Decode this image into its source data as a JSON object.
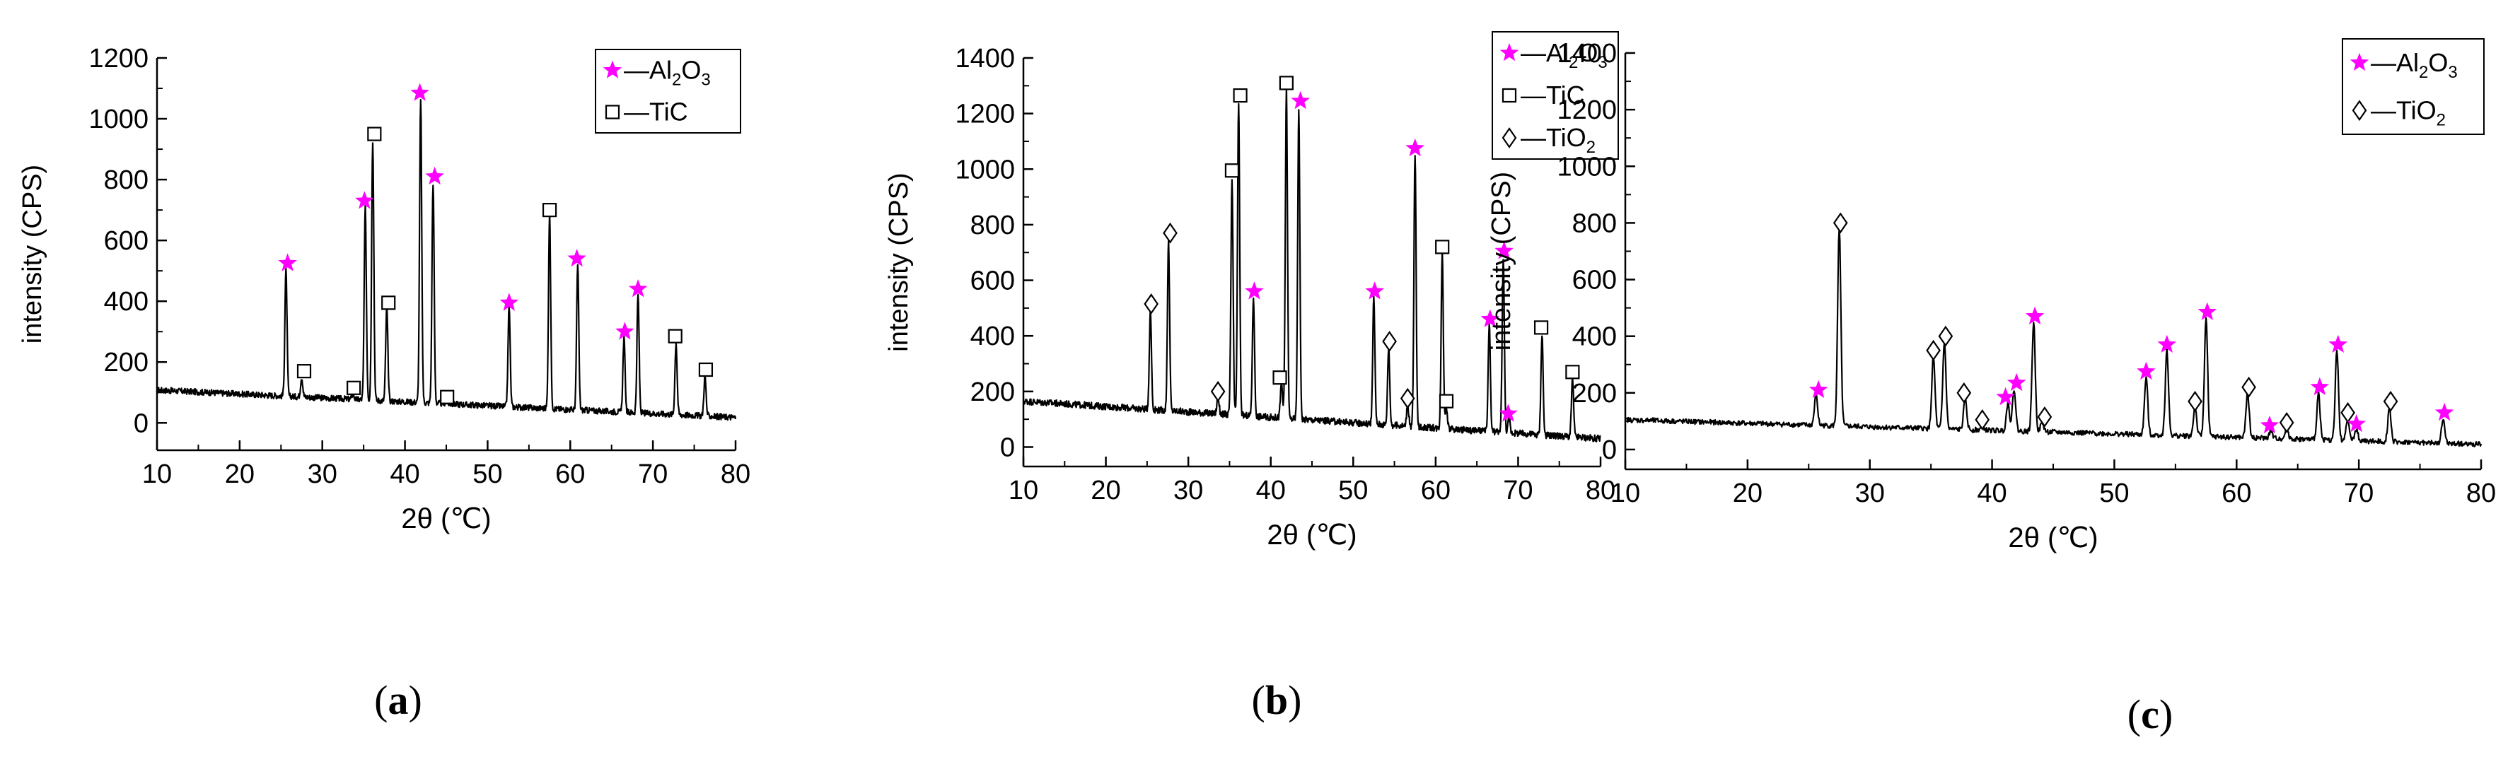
{
  "figure": {
    "panel_labels": [
      {
        "open": "(",
        "letter": "a",
        "close": ")"
      },
      {
        "open": "(",
        "letter": "b",
        "close": ")"
      },
      {
        "open": "(",
        "letter": "c",
        "close": ")"
      }
    ]
  },
  "chart_data": [
    {
      "type": "line",
      "panel": "a",
      "title": "",
      "xlabel": "2θ (℃)",
      "ylabel": "intensity (CPS)",
      "xlim": [
        10,
        80
      ],
      "ylim": [
        -90,
        1200
      ],
      "xticks": [
        10,
        20,
        30,
        40,
        50,
        60,
        70,
        80
      ],
      "yticks": [
        0,
        200,
        400,
        600,
        800,
        1000,
        1200
      ],
      "grid": false,
      "legend_position": "top-right",
      "series_color": "#000000",
      "marker_colors": {
        "star": "#ff00ff",
        "square": "#000000",
        "diamond": "#000000"
      },
      "legend": [
        {
          "marker": "star",
          "label_prefix": "—Al",
          "sub1": "2",
          "mid": "O",
          "sub2": "3"
        },
        {
          "marker": "square",
          "label_prefix": "—TiC",
          "sub1": "",
          "mid": "",
          "sub2": ""
        }
      ],
      "baseline": {
        "start": 108,
        "end": 18,
        "noise": 10
      },
      "peaks": [
        {
          "x": 25.6,
          "y": 500
        },
        {
          "x": 27.5,
          "y": 150
        },
        {
          "x": 33.7,
          "y": 95
        },
        {
          "x": 35.2,
          "y": 710
        },
        {
          "x": 36.1,
          "y": 930
        },
        {
          "x": 37.8,
          "y": 380
        },
        {
          "x": 41.9,
          "y": 1060
        },
        {
          "x": 43.4,
          "y": 790
        },
        {
          "x": 45.0,
          "y": 70
        },
        {
          "x": 52.6,
          "y": 380
        },
        {
          "x": 57.5,
          "y": 685
        },
        {
          "x": 60.9,
          "y": 515
        },
        {
          "x": 66.5,
          "y": 280
        },
        {
          "x": 68.2,
          "y": 420
        },
        {
          "x": 72.8,
          "y": 265
        },
        {
          "x": 76.3,
          "y": 155
        }
      ],
      "markers": [
        {
          "type": "star",
          "x": 25.8,
          "y": 525
        },
        {
          "type": "square",
          "x": 27.8,
          "y": 170
        },
        {
          "type": "square",
          "x": 33.8,
          "y": 115
        },
        {
          "type": "star",
          "x": 35.1,
          "y": 730
        },
        {
          "type": "square",
          "x": 36.3,
          "y": 950
        },
        {
          "type": "square",
          "x": 38.0,
          "y": 395
        },
        {
          "type": "star",
          "x": 41.8,
          "y": 1085
        },
        {
          "type": "star",
          "x": 43.6,
          "y": 810
        },
        {
          "type": "square",
          "x": 45.1,
          "y": 85
        },
        {
          "type": "star",
          "x": 52.6,
          "y": 395
        },
        {
          "type": "square",
          "x": 57.5,
          "y": 700
        },
        {
          "type": "star",
          "x": 60.8,
          "y": 540
        },
        {
          "type": "star",
          "x": 66.6,
          "y": 300
        },
        {
          "type": "star",
          "x": 68.2,
          "y": 440
        },
        {
          "type": "square",
          "x": 72.7,
          "y": 285
        },
        {
          "type": "square",
          "x": 76.4,
          "y": 175
        }
      ]
    },
    {
      "type": "line",
      "panel": "b",
      "title": "",
      "xlabel": "2θ (℃)",
      "ylabel": "intensity (CPS)",
      "xlim": [
        10,
        80
      ],
      "ylim": [
        -70,
        1400
      ],
      "xticks": [
        10,
        20,
        30,
        40,
        50,
        60,
        70,
        80
      ],
      "yticks": [
        0,
        200,
        400,
        600,
        800,
        1000,
        1200,
        1400
      ],
      "grid": false,
      "legend_position": "top-right",
      "series_color": "#000000",
      "marker_colors": {
        "star": "#ff00ff",
        "square": "#000000",
        "diamond": "#000000"
      },
      "legend": [
        {
          "marker": "star",
          "label_prefix": "—Al",
          "sub1": "2",
          "mid": "O",
          "sub2": "3"
        },
        {
          "marker": "square",
          "label_prefix": "—TiC",
          "sub1": "",
          "mid": "",
          "sub2": ""
        },
        {
          "marker": "diamond",
          "label_prefix": "—TiO",
          "sub1": "2",
          "mid": "",
          "sub2": ""
        }
      ],
      "baseline": {
        "start": 165,
        "end": 30,
        "noise": 12
      },
      "peaks": [
        {
          "x": 25.4,
          "y": 490
        },
        {
          "x": 27.6,
          "y": 740
        },
        {
          "x": 33.6,
          "y": 180
        },
        {
          "x": 35.3,
          "y": 960
        },
        {
          "x": 36.1,
          "y": 1240
        },
        {
          "x": 37.9,
          "y": 540
        },
        {
          "x": 41.3,
          "y": 230
        },
        {
          "x": 41.9,
          "y": 1290
        },
        {
          "x": 43.4,
          "y": 1220
        },
        {
          "x": 52.5,
          "y": 535
        },
        {
          "x": 54.3,
          "y": 355
        },
        {
          "x": 56.6,
          "y": 150
        },
        {
          "x": 57.5,
          "y": 1055
        },
        {
          "x": 60.8,
          "y": 700
        },
        {
          "x": 61.3,
          "y": 145
        },
        {
          "x": 66.5,
          "y": 440
        },
        {
          "x": 68.2,
          "y": 685
        },
        {
          "x": 68.9,
          "y": 100
        },
        {
          "x": 72.9,
          "y": 410
        },
        {
          "x": 76.6,
          "y": 245
        }
      ],
      "markers": [
        {
          "type": "diamond",
          "x": 25.5,
          "y": 515
        },
        {
          "type": "diamond",
          "x": 27.8,
          "y": 770
        },
        {
          "type": "diamond",
          "x": 33.6,
          "y": 200
        },
        {
          "type": "square",
          "x": 35.3,
          "y": 995
        },
        {
          "type": "square",
          "x": 36.3,
          "y": 1265
        },
        {
          "type": "star",
          "x": 38.0,
          "y": 560
        },
        {
          "type": "square",
          "x": 41.1,
          "y": 250
        },
        {
          "type": "square",
          "x": 41.9,
          "y": 1310
        },
        {
          "type": "star",
          "x": 43.6,
          "y": 1245
        },
        {
          "type": "star",
          "x": 52.6,
          "y": 560
        },
        {
          "type": "diamond",
          "x": 54.4,
          "y": 380
        },
        {
          "type": "diamond",
          "x": 56.6,
          "y": 175
        },
        {
          "type": "star",
          "x": 57.5,
          "y": 1075
        },
        {
          "type": "square",
          "x": 60.8,
          "y": 720
        },
        {
          "type": "square",
          "x": 61.3,
          "y": 165
        },
        {
          "type": "star",
          "x": 66.6,
          "y": 460
        },
        {
          "type": "star",
          "x": 68.3,
          "y": 705
        },
        {
          "type": "star",
          "x": 68.8,
          "y": 120
        },
        {
          "type": "square",
          "x": 72.8,
          "y": 430
        },
        {
          "type": "square",
          "x": 76.6,
          "y": 270
        }
      ]
    },
    {
      "type": "line",
      "panel": "c",
      "title": "",
      "xlabel": "2θ (℃)",
      "ylabel": "intensity (CPS)",
      "xlim": [
        10,
        80
      ],
      "ylim": [
        -70,
        1400
      ],
      "xticks": [
        10,
        20,
        30,
        40,
        50,
        60,
        70,
        80
      ],
      "yticks": [
        0,
        200,
        400,
        600,
        800,
        1000,
        1200,
        1400
      ],
      "grid": false,
      "legend_position": "top-right",
      "series_color": "#000000",
      "marker_colors": {
        "star": "#ff00ff",
        "square": "#000000",
        "diamond": "#000000"
      },
      "legend": [
        {
          "marker": "star",
          "label_prefix": "—Al",
          "sub1": "2",
          "mid": "O",
          "sub2": "3"
        },
        {
          "marker": "diamond",
          "label_prefix": "—TiO",
          "sub1": "2",
          "mid": "",
          "sub2": ""
        }
      ],
      "baseline": {
        "start": 105,
        "end": 18,
        "noise": 9
      },
      "peaks": [
        {
          "x": 25.6,
          "y": 190
        },
        {
          "x": 27.5,
          "y": 780
        },
        {
          "x": 35.2,
          "y": 325
        },
        {
          "x": 36.1,
          "y": 380
        },
        {
          "x": 37.8,
          "y": 175
        },
        {
          "x": 39.2,
          "y": 85
        },
        {
          "x": 41.3,
          "y": 165
        },
        {
          "x": 41.8,
          "y": 215
        },
        {
          "x": 43.4,
          "y": 450
        },
        {
          "x": 44.1,
          "y": 95
        },
        {
          "x": 52.6,
          "y": 255
        },
        {
          "x": 54.3,
          "y": 350
        },
        {
          "x": 56.6,
          "y": 150
        },
        {
          "x": 57.5,
          "y": 465
        },
        {
          "x": 60.9,
          "y": 200
        },
        {
          "x": 62.8,
          "y": 65
        },
        {
          "x": 64.1,
          "y": 75
        },
        {
          "x": 66.7,
          "y": 200
        },
        {
          "x": 68.2,
          "y": 350
        },
        {
          "x": 69.1,
          "y": 110
        },
        {
          "x": 69.8,
          "y": 70
        },
        {
          "x": 72.5,
          "y": 150
        },
        {
          "x": 76.9,
          "y": 110
        }
      ],
      "markers": [
        {
          "type": "star",
          "x": 25.8,
          "y": 210
        },
        {
          "type": "diamond",
          "x": 27.6,
          "y": 800
        },
        {
          "type": "diamond",
          "x": 35.2,
          "y": 350
        },
        {
          "type": "diamond",
          "x": 36.2,
          "y": 400
        },
        {
          "type": "diamond",
          "x": 37.7,
          "y": 200
        },
        {
          "type": "diamond",
          "x": 39.2,
          "y": 105
        },
        {
          "type": "star",
          "x": 41.1,
          "y": 185
        },
        {
          "type": "star",
          "x": 42.0,
          "y": 235
        },
        {
          "type": "star",
          "x": 43.5,
          "y": 470
        },
        {
          "type": "diamond",
          "x": 44.3,
          "y": 115
        },
        {
          "type": "star",
          "x": 52.6,
          "y": 275
        },
        {
          "type": "star",
          "x": 54.3,
          "y": 370
        },
        {
          "type": "diamond",
          "x": 56.6,
          "y": 170
        },
        {
          "type": "star",
          "x": 57.6,
          "y": 485
        },
        {
          "type": "diamond",
          "x": 61.0,
          "y": 220
        },
        {
          "type": "star",
          "x": 62.7,
          "y": 85
        },
        {
          "type": "diamond",
          "x": 64.1,
          "y": 95
        },
        {
          "type": "star",
          "x": 66.8,
          "y": 220
        },
        {
          "type": "star",
          "x": 68.3,
          "y": 370
        },
        {
          "type": "diamond",
          "x": 69.1,
          "y": 130
        },
        {
          "type": "star",
          "x": 69.8,
          "y": 90
        },
        {
          "type": "diamond",
          "x": 72.6,
          "y": 170
        },
        {
          "type": "star",
          "x": 77.0,
          "y": 130
        }
      ]
    }
  ]
}
